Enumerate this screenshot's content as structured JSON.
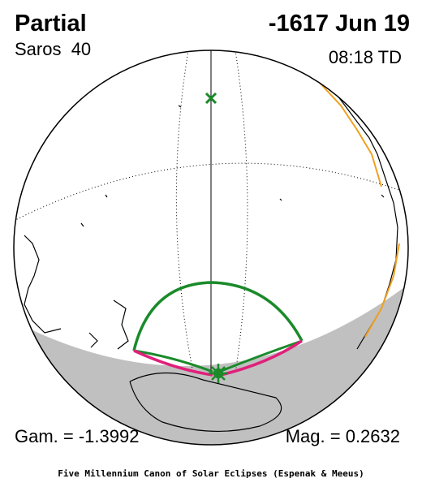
{
  "header": {
    "eclipse_type": "Partial",
    "date": "-1617 Jun 19",
    "saros": "Saros  40",
    "time": "08:18 TD"
  },
  "footer": {
    "gamma": "Gam. = -1.3992",
    "magnitude": "Mag. = 0.2632",
    "credit": "Five Millennium Canon of Solar Eclipses (Espenak & Meeus)"
  }
}
